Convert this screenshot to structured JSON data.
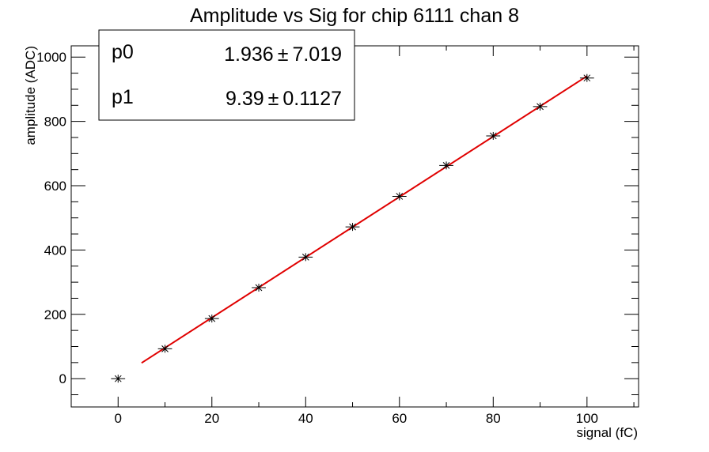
{
  "chart_data": {
    "type": "scatter",
    "title": "Amplitude vs Sig for chip 6111 chan 8",
    "xlabel": "signal (fC)",
    "ylabel": "amplitude (ADC)",
    "xlim": [
      -10,
      111
    ],
    "ylim": [
      -88,
      1035
    ],
    "x_ticks": [
      0,
      20,
      40,
      60,
      80,
      100
    ],
    "y_ticks": [
      0,
      200,
      400,
      600,
      800,
      1000
    ],
    "grid": false,
    "legend": "none",
    "points": {
      "x": [
        0,
        10,
        20,
        30,
        40,
        50,
        60,
        70,
        80,
        90,
        100
      ],
      "y": [
        0,
        93,
        187,
        283,
        378,
        472,
        567,
        663,
        755,
        846,
        935
      ],
      "x_err": 1.5,
      "y_err": 5,
      "color": "#000000"
    },
    "fit": {
      "x_range": [
        5,
        100
      ],
      "p0": 1.936,
      "p1": 9.39,
      "color": "#e00000"
    },
    "stats_box": {
      "position": "top-left",
      "rows": [
        {
          "name": "p0",
          "value": "1.936",
          "pm": "±",
          "error": "7.019"
        },
        {
          "name": "p1",
          "value": "9.39",
          "pm": "±",
          "error": "0.1127"
        }
      ]
    }
  }
}
